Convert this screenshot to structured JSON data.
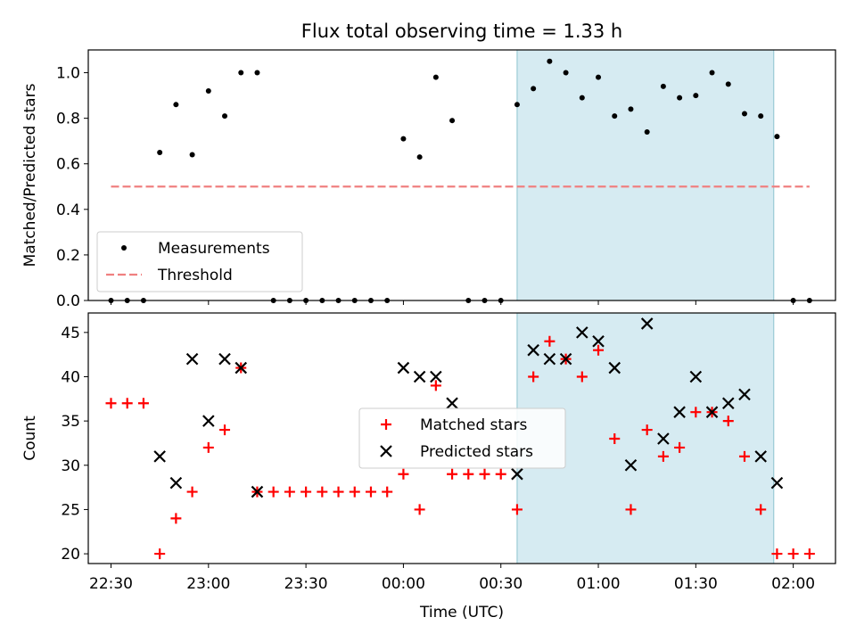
{
  "title": "Flux total observing time = 1.33 h",
  "colors": {
    "measurement": "#000000",
    "threshold": "#f08080",
    "matched": "#ff0000",
    "predicted": "#000000",
    "highlight": "#add8e6"
  },
  "chart_data": [
    {
      "type": "scatter",
      "ylabel": "Matched/Predicted stars",
      "ylim": [
        0.0,
        1.1
      ],
      "yticks": [
        "0.0",
        "0.2",
        "0.4",
        "0.6",
        "0.8",
        "1.0"
      ],
      "xlim": [
        "22:23",
        "02:13"
      ],
      "highlight_span": [
        "00:35",
        "01:54"
      ],
      "legend": {
        "placement": "lower left"
      },
      "series": [
        {
          "name": "Measurements",
          "marker": "dot",
          "x": [
            "22:30",
            "22:35",
            "22:40",
            "22:45",
            "22:50",
            "22:55",
            "23:00",
            "23:05",
            "23:10",
            "23:15",
            "23:20",
            "23:25",
            "23:30",
            "23:35",
            "23:40",
            "23:45",
            "23:50",
            "23:55",
            "24:00",
            "24:05",
            "24:10",
            "24:15",
            "24:20",
            "24:25",
            "24:30",
            "24:35",
            "24:40",
            "24:45",
            "24:50",
            "24:55",
            "25:00",
            "25:05",
            "25:10",
            "25:15",
            "25:20",
            "25:25",
            "25:30",
            "25:35",
            "25:40",
            "25:45",
            "25:50",
            "25:55",
            "26:00",
            "26:05"
          ],
          "y": [
            0,
            0,
            0,
            0.65,
            0.86,
            0.64,
            0.92,
            0.81,
            1.0,
            1.0,
            0,
            0,
            0,
            0,
            0,
            0,
            0,
            0,
            0.71,
            0.63,
            0.98,
            0.79,
            0,
            0,
            0,
            0.86,
            0.93,
            1.05,
            1.0,
            0.89,
            0.98,
            0.81,
            0.84,
            0.74,
            0.94,
            0.89,
            0.9,
            1.0,
            0.95,
            0.82,
            0.81,
            0.72,
            0,
            0
          ]
        },
        {
          "name": "Threshold",
          "style": "dashed",
          "x": [
            "22:30",
            "26:05"
          ],
          "y": [
            0.5,
            0.5
          ]
        }
      ]
    },
    {
      "type": "scatter",
      "xlabel": "Time (UTC)",
      "ylabel": "Count",
      "ylim": [
        18.9,
        47.2
      ],
      "yticks": [
        "20",
        "25",
        "30",
        "35",
        "40",
        "45"
      ],
      "xlim": [
        "22:23",
        "02:13"
      ],
      "xticks": [
        "22:30",
        "23:00",
        "23:30",
        "00:00",
        "00:30",
        "01:00",
        "01:30",
        "02:00"
      ],
      "highlight_span": [
        "00:35",
        "01:54"
      ],
      "legend": {
        "placement": "center"
      },
      "series": [
        {
          "name": "Matched stars",
          "marker": "plus",
          "x": [
            "22:30",
            "22:35",
            "22:40",
            "22:45",
            "22:50",
            "22:55",
            "23:00",
            "23:05",
            "23:10",
            "23:15",
            "23:20",
            "23:25",
            "23:30",
            "23:35",
            "23:40",
            "23:45",
            "23:50",
            "23:55",
            "24:00",
            "24:05",
            "24:10",
            "24:15",
            "24:20",
            "24:25",
            "24:30",
            "24:35",
            "24:40",
            "24:45",
            "24:50",
            "24:55",
            "25:00",
            "25:05",
            "25:10",
            "25:15",
            "25:20",
            "25:25",
            "25:30",
            "25:35",
            "25:40",
            "25:45",
            "25:50",
            "25:55",
            "26:00",
            "26:05"
          ],
          "y": [
            37,
            37,
            37,
            20,
            24,
            27,
            32,
            34,
            41,
            27,
            27,
            27,
            27,
            27,
            27,
            27,
            27,
            27,
            29,
            25,
            39,
            29,
            29,
            29,
            29,
            25,
            40,
            44,
            42,
            40,
            43,
            33,
            25,
            34,
            31,
            32,
            36,
            36,
            35,
            31,
            25,
            20,
            20,
            20
          ]
        },
        {
          "name": "Predicted stars",
          "marker": "x",
          "x": [
            "22:45",
            "22:50",
            "22:55",
            "23:00",
            "23:05",
            "23:10",
            "23:15",
            "24:00",
            "24:05",
            "24:10",
            "24:15",
            "24:35",
            "24:40",
            "24:45",
            "24:50",
            "24:55",
            "25:00",
            "25:05",
            "25:10",
            "25:15",
            "25:20",
            "25:25",
            "25:30",
            "25:35",
            "25:40",
            "25:45",
            "25:50",
            "25:55"
          ],
          "y": [
            31,
            28,
            42,
            35,
            42,
            41,
            27,
            41,
            40,
            40,
            37,
            29,
            43,
            42,
            42,
            45,
            44,
            41,
            30,
            46,
            33,
            36,
            40,
            36,
            37,
            38,
            31,
            28
          ]
        }
      ]
    }
  ]
}
